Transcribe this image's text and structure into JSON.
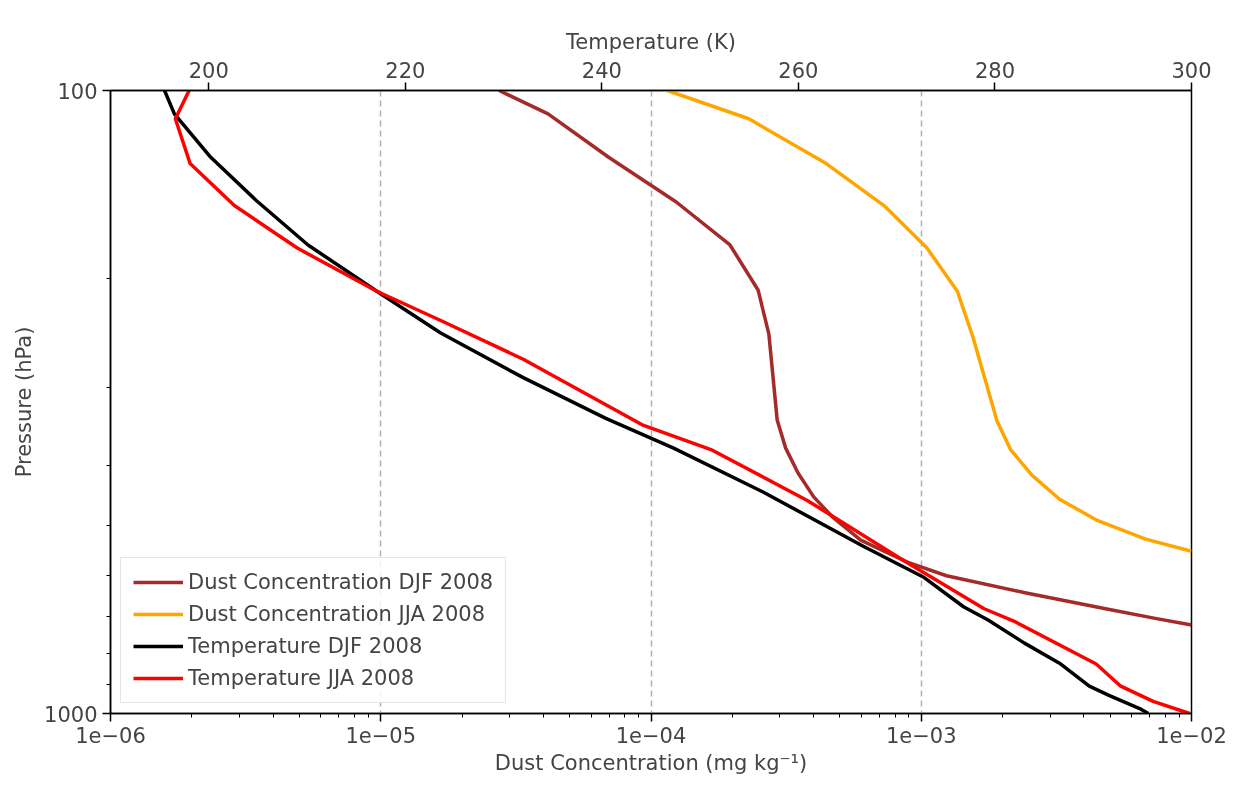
{
  "chart_data": {
    "type": "line",
    "xlabel": "Dust Concentration (mg kg⁻¹)",
    "x2label": "Temperature (K)",
    "ylabel": "Pressure (hPa)",
    "log": "xy",
    "grid": "x",
    "legend": "bottom left",
    "line_style": "solid",
    "xlim": [
      1e-06,
      0.01
    ],
    "xticks": [
      {
        "value": 1e-06,
        "label": "1e−06"
      },
      {
        "value": 1e-05,
        "label": "1e−05"
      },
      {
        "value": 0.0001,
        "label": "1e−04"
      },
      {
        "value": 0.001,
        "label": "1e−03"
      },
      {
        "value": 0.01,
        "label": "1e−02"
      }
    ],
    "x2lim": [
      190,
      300
    ],
    "x2ticks": [
      200,
      220,
      240,
      260,
      280,
      300
    ],
    "ylim": [
      1000,
      100
    ],
    "yticks": [
      100,
      1000
    ],
    "series": [
      {
        "name": "Dust Concentration DJF 2008",
        "color": "#a52a2a",
        "x": [
          2.74e-05,
          4.16e-05,
          6.97e-05,
          0.000124,
          0.000196,
          0.000249,
          0.000273,
          0.000293,
          0.000315,
          0.00035,
          0.0004,
          0.00047,
          0.000597,
          0.000893,
          0.00124,
          0.00242,
          0.00481,
          0.00726,
          0.01
        ],
        "values": [
          100,
          109,
          128,
          151,
          177,
          209,
          246,
          338,
          375,
          411,
          449,
          484,
          527,
          572,
          601,
          640,
          679,
          703,
          721
        ]
      },
      {
        "name": "Dust Concentration JJA 2008",
        "color": "#ffa500",
        "x": [
          0.000115,
          0.00023,
          0.000445,
          0.000728,
          0.00105,
          0.00136,
          0.00155,
          0.00191,
          0.00214,
          0.00256,
          0.00325,
          0.00448,
          0.00676,
          0.01
        ],
        "values": [
          100,
          111,
          131,
          153,
          179,
          210,
          248,
          340,
          377,
          414,
          453,
          490,
          525,
          549
        ]
      },
      {
        "name": "Temperature DJF 2008",
        "color": "#000000",
        "axis": "x2",
        "x": [
          195.5,
          196.5,
          200.2,
          204.8,
          210.1,
          217.1,
          223.6,
          232.0,
          240.4,
          247.3,
          256.4,
          266.6,
          272.8,
          276.8,
          279.3,
          283.0,
          286.7,
          289.6,
          291.6,
          294.9,
          295.6
        ],
        "values": [
          100,
          109,
          128,
          150,
          177,
          210,
          245,
          289,
          336,
          375,
          441,
          539,
          605,
          674,
          708,
          771,
          833,
          904,
          935,
          985,
          1000
        ]
      },
      {
        "name": "Temperature JJA 2008",
        "color": "#ff0000",
        "axis": "x2",
        "x": [
          198.0,
          196.6,
          198.1,
          202.6,
          209.0,
          217.1,
          223.6,
          232.0,
          244.1,
          251.1,
          260.9,
          270.7,
          278.9,
          282.1,
          290.3,
          292.8,
          296.1,
          299.8
        ],
        "values": [
          100,
          111,
          131,
          153,
          179,
          210,
          234,
          270,
          344,
          377,
          455,
          568,
          679,
          713,
          833,
          904,
          956,
          1000
        ]
      }
    ]
  }
}
